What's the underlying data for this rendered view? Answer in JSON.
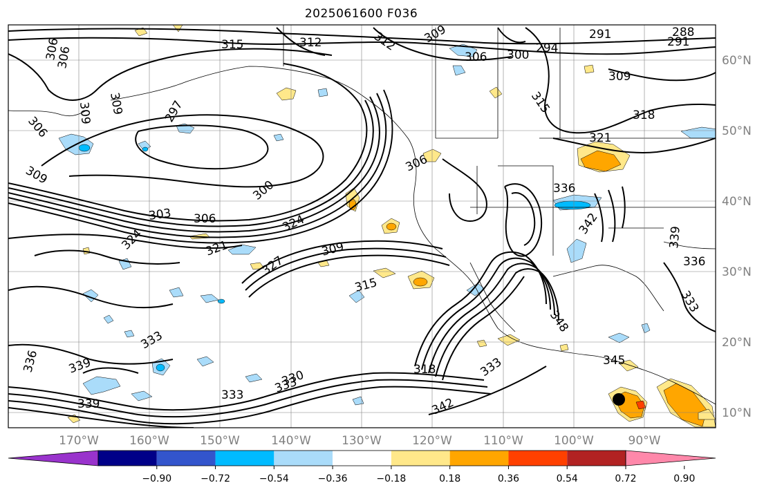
{
  "title": "2025061600 F036",
  "colors": {
    "contour": "#000000",
    "grid": "#808080",
    "coast": "#000000",
    "ocean": "#ffffff"
  },
  "lon_labels": [
    "170°W",
    "160°W",
    "150°W",
    "140°W",
    "130°W",
    "120°W",
    "110°W",
    "100°W",
    "90°W"
  ],
  "lat_labels": [
    "60°N",
    "50°N",
    "40°N",
    "30°N",
    "20°N",
    "10°N"
  ],
  "contour_labels": [
    "315",
    "312",
    "312",
    "309",
    "306",
    "300",
    "294",
    "291",
    "288",
    "291",
    "306",
    "306",
    "309",
    "306",
    "297",
    "309",
    "315",
    "309",
    "318",
    "321",
    "309",
    "306",
    "300",
    "303",
    "306",
    "324",
    "336",
    "324",
    "321",
    "309",
    "327",
    "315",
    "339",
    "336",
    "333",
    "348",
    "342",
    "333",
    "336",
    "339",
    "333",
    "330",
    "333",
    "339",
    "318",
    "333",
    "342",
    "345"
  ],
  "colorbar": {
    "colors": [
      "#9933cc",
      "#000088",
      "#3355cc",
      "#00bbff",
      "#aadcfa",
      "#ffffff",
      "#ffe88a",
      "#ffa600",
      "#ff4000",
      "#b22222",
      "#ff88aa"
    ],
    "tick_labels": [
      "−0.90",
      "−0.72",
      "−0.54",
      "−0.36",
      "−0.18",
      "0.18",
      "0.36",
      "0.54",
      "0.72",
      "0.90"
    ]
  }
}
